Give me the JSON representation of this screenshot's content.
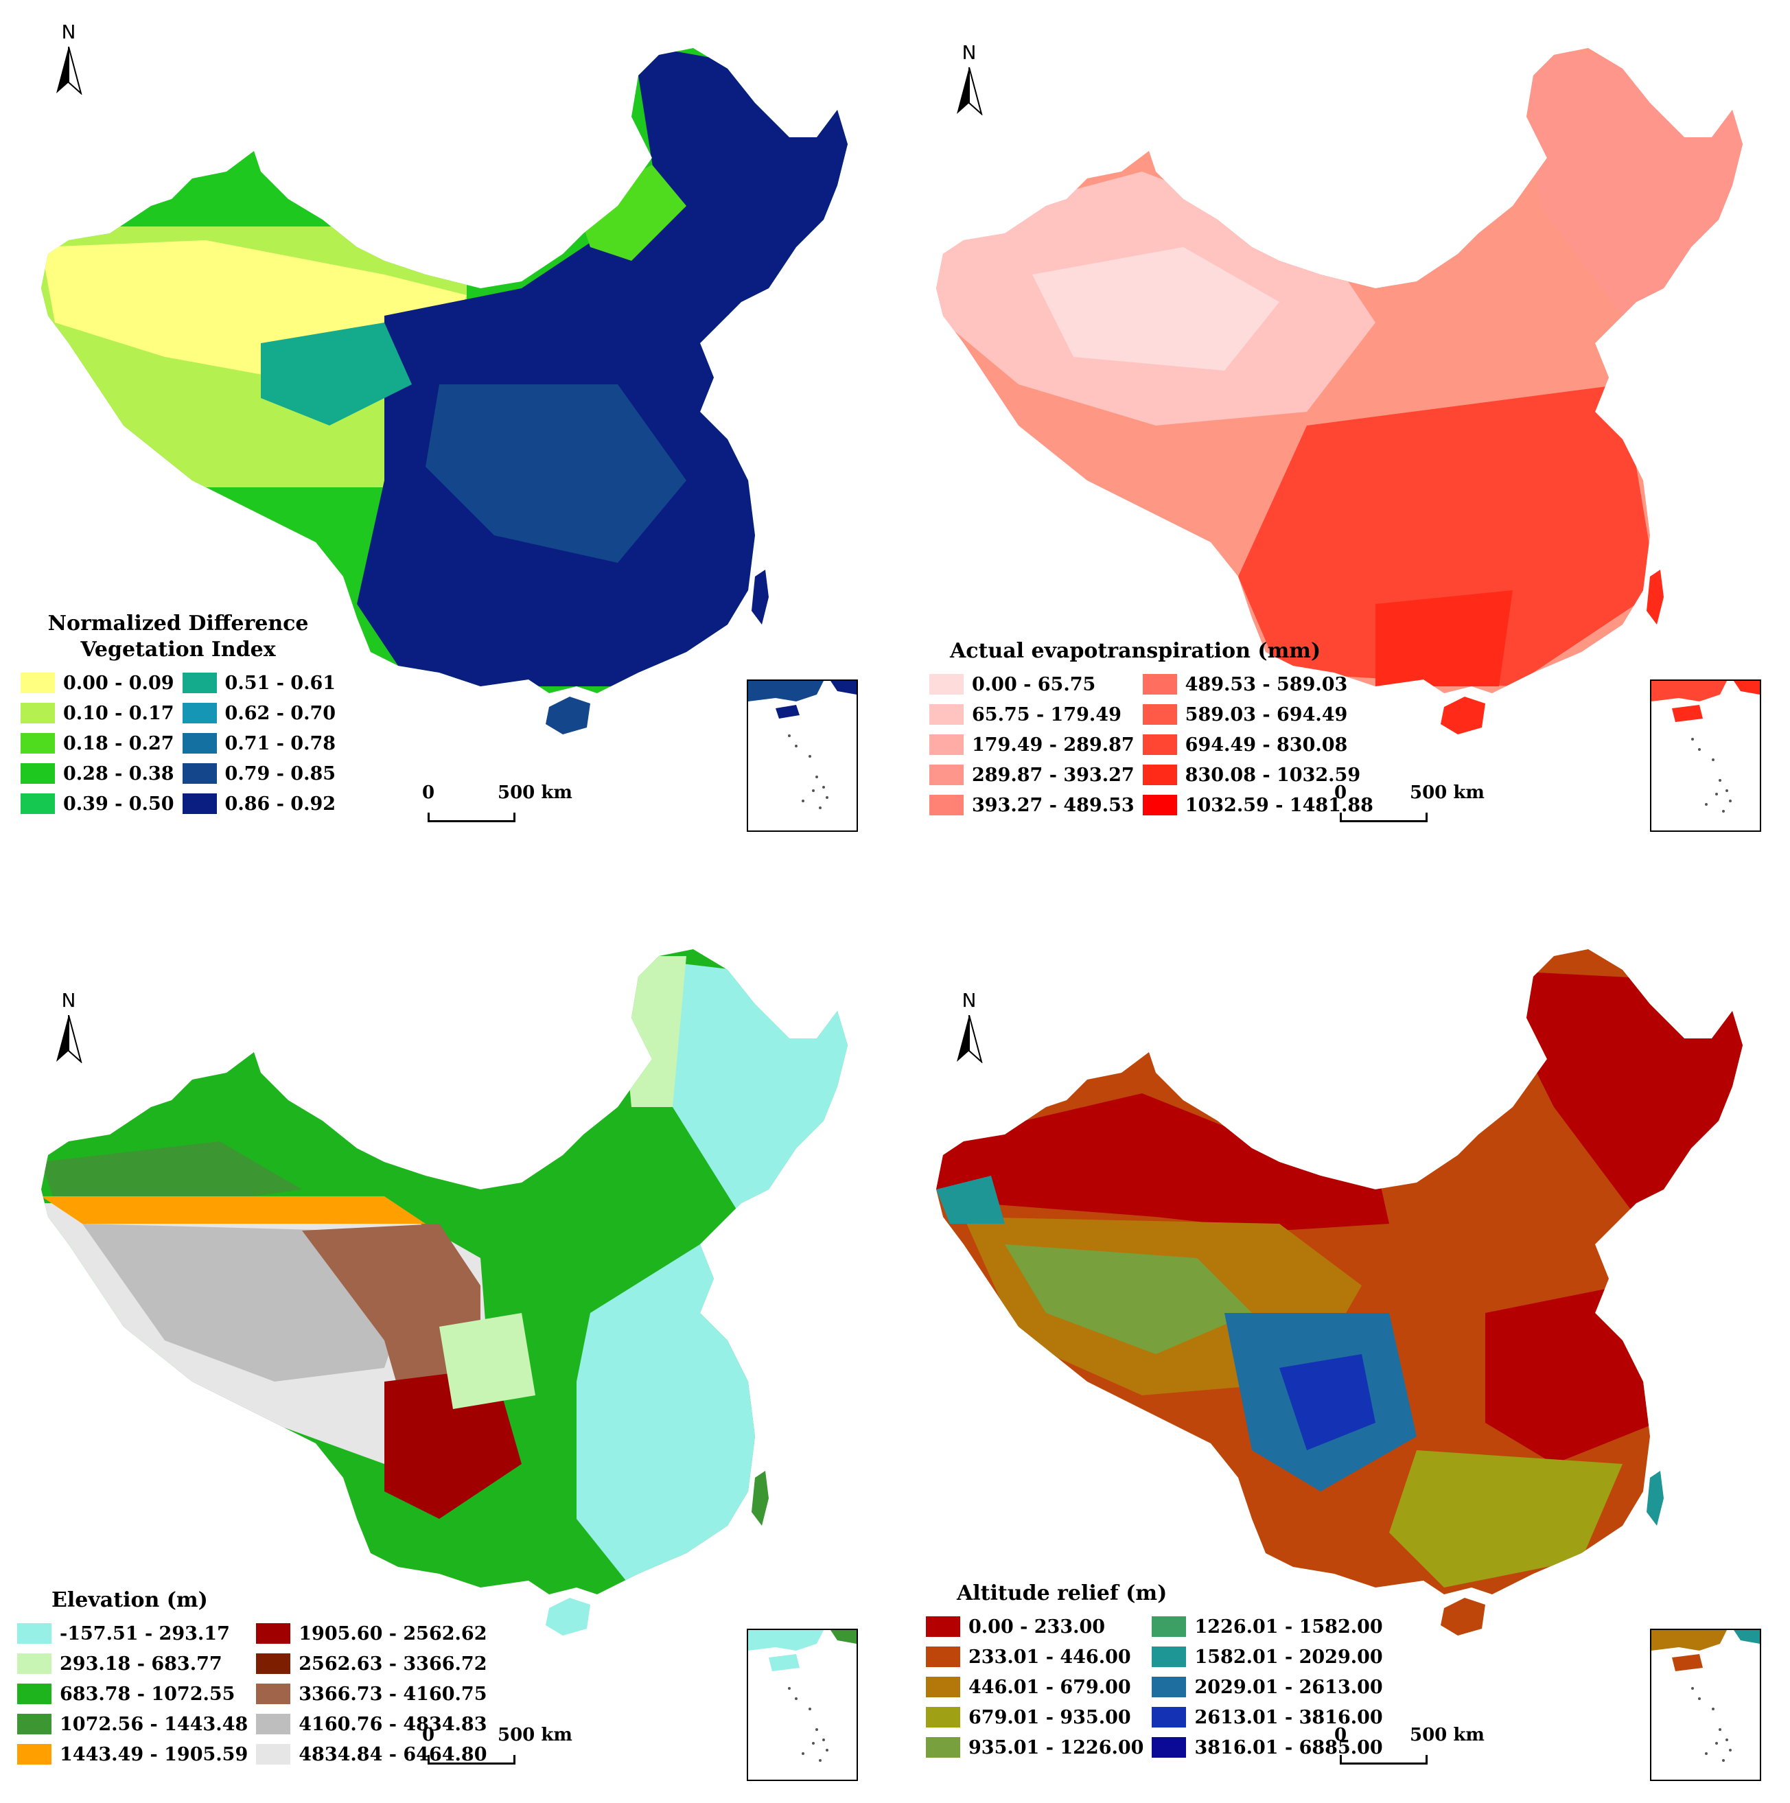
{
  "north_label": "N",
  "scale": {
    "zero": "0",
    "end": "500 km"
  },
  "panels": {
    "ndvi": {
      "title_line1": "Normalized Difference",
      "title_line2": "Vegetation Index",
      "classes": [
        {
          "label": "0.00 - 0.09",
          "color": "#ffff80"
        },
        {
          "label": "0.10 - 0.17",
          "color": "#b4f050"
        },
        {
          "label": "0.18 - 0.27",
          "color": "#50dc1e"
        },
        {
          "label": "0.28 - 0.38",
          "color": "#1ec81e"
        },
        {
          "label": "0.39 - 0.50",
          "color": "#14c850"
        },
        {
          "label": "0.51 - 0.61",
          "color": "#14aa8c"
        },
        {
          "label": "0.62 - 0.70",
          "color": "#1496b4"
        },
        {
          "label": "0.71 - 0.78",
          "color": "#1470a0"
        },
        {
          "label": "0.79 - 0.85",
          "color": "#14468c"
        },
        {
          "label": "0.86 - 0.92",
          "color": "#0a1e82"
        }
      ]
    },
    "aet": {
      "title": "Actual evapotranspiration (mm)",
      "classes": [
        {
          "label": "0.00 -  65.75",
          "color": "#ffdcdc"
        },
        {
          "label": "65.75 - 179.49",
          "color": "#ffc4c0"
        },
        {
          "label": "179.49 - 289.87",
          "color": "#ffaca6"
        },
        {
          "label": "289.87 - 393.27",
          "color": "#ff968c"
        },
        {
          "label": "393.27 - 489.53",
          "color": "#ff8274"
        },
        {
          "label": "489.53 - 589.03",
          "color": "#ff6e5e"
        },
        {
          "label": "589.03 - 694.49",
          "color": "#ff5a48"
        },
        {
          "label": "694.49 - 830.08",
          "color": "#ff4632"
        },
        {
          "label": "830.08 - 1032.59",
          "color": "#ff2a18"
        },
        {
          "label": "1032.59 - 1481.88",
          "color": "#ff0000"
        }
      ]
    },
    "elev": {
      "title": "Elevation (m)",
      "classes": [
        {
          "label": "-157.51 - 293.17",
          "color": "#96f0e6"
        },
        {
          "label": "293.18 - 683.77",
          "color": "#c8f5b4"
        },
        {
          "label": "683.78 - 1072.55",
          "color": "#1eb41e"
        },
        {
          "label": "1072.56 - 1443.48",
          "color": "#3c9632"
        },
        {
          "label": "1443.49 - 1905.59",
          "color": "#ffa000"
        },
        {
          "label": "1905.60 - 2562.62",
          "color": "#a00000"
        },
        {
          "label": "2562.63 - 3366.72",
          "color": "#7d1e00"
        },
        {
          "label": "3366.73 - 4160.75",
          "color": "#a0644b"
        },
        {
          "label": "4160.76 - 4834.83",
          "color": "#bebebe"
        },
        {
          "label": "4834.84 - 6464.80",
          "color": "#e6e6e6"
        }
      ]
    },
    "relief": {
      "title": "Altitude relief (m)",
      "classes": [
        {
          "label": "0.00 - 233.00",
          "color": "#b40000"
        },
        {
          "label": "233.01 - 446.00",
          "color": "#be460a"
        },
        {
          "label": "446.01 - 679.00",
          "color": "#b4780a"
        },
        {
          "label": "679.01 - 935.00",
          "color": "#a0a014"
        },
        {
          "label": "935.01 - 1226.00",
          "color": "#78a03c"
        },
        {
          "label": "1226.01 - 1582.00",
          "color": "#3ca064"
        },
        {
          "label": "1582.01 - 2029.00",
          "color": "#1e9696"
        },
        {
          "label": "2029.01 - 2613.00",
          "color": "#1e6ea0"
        },
        {
          "label": "2613.01 - 3816.00",
          "color": "#1432b4"
        },
        {
          "label": "3816.01 - 6885.00",
          "color": "#0a0a96"
        }
      ]
    }
  }
}
